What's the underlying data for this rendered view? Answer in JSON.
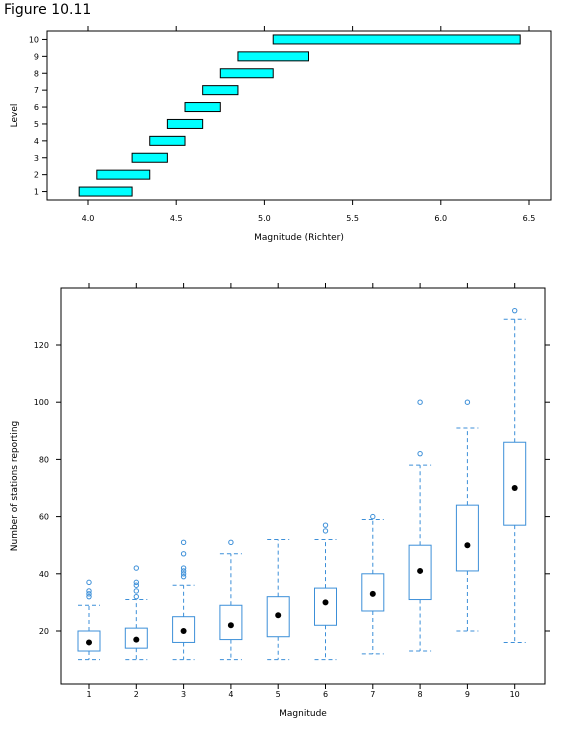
{
  "figure_title": "Figure 10.11",
  "chart_data": [
    {
      "type": "bar",
      "subtype": "shingle-intervals",
      "xlabel": "Magnitude (Richter)",
      "ylabel": "Level",
      "xlim": [
        3.8,
        6.6
      ],
      "x_ticks": [
        "4.0",
        "4.5",
        "5.0",
        "5.5",
        "6.0",
        "6.5"
      ],
      "x_tick_values": [
        4.0,
        4.5,
        5.0,
        5.5,
        6.0,
        6.5
      ],
      "levels": [
        "1",
        "2",
        "3",
        "4",
        "5",
        "6",
        "7",
        "8",
        "9",
        "10"
      ],
      "intervals": [
        [
          3.95,
          4.25
        ],
        [
          4.05,
          4.35
        ],
        [
          4.25,
          4.45
        ],
        [
          4.35,
          4.55
        ],
        [
          4.45,
          4.65
        ],
        [
          4.55,
          4.75
        ],
        [
          4.65,
          4.85
        ],
        [
          4.75,
          5.05
        ],
        [
          4.85,
          5.25
        ],
        [
          5.05,
          6.45
        ]
      ],
      "bar_color": "#00ffff"
    },
    {
      "type": "box",
      "xlabel": "Magnitude",
      "ylabel": "Number of stations reporting",
      "ylim": [
        0,
        138
      ],
      "y_ticks": [
        "20",
        "40",
        "60",
        "80",
        "100",
        "120"
      ],
      "y_tick_values": [
        20,
        40,
        60,
        80,
        100,
        120
      ],
      "categories": [
        "1",
        "2",
        "3",
        "4",
        "5",
        "6",
        "7",
        "8",
        "9",
        "10"
      ],
      "boxes": [
        {
          "whisker_low": 10,
          "q1": 13,
          "median": 16,
          "q3": 20,
          "whisker_high": 29,
          "outliers": [
            32,
            33,
            34,
            37
          ]
        },
        {
          "whisker_low": 10,
          "q1": 14,
          "median": 17,
          "q3": 21,
          "whisker_high": 31,
          "outliers": [
            32,
            34,
            36,
            37,
            42
          ]
        },
        {
          "whisker_low": 10,
          "q1": 16,
          "median": 20,
          "q3": 25,
          "whisker_high": 36,
          "outliers": [
            39,
            40,
            41,
            42,
            47,
            51
          ]
        },
        {
          "whisker_low": 10,
          "q1": 17,
          "median": 22,
          "q3": 29,
          "whisker_high": 47,
          "outliers": [
            51
          ]
        },
        {
          "whisker_low": 10,
          "q1": 18,
          "median": 25.5,
          "q3": 32,
          "whisker_high": 52,
          "outliers": []
        },
        {
          "whisker_low": 10,
          "q1": 22,
          "median": 30,
          "q3": 35,
          "whisker_high": 52,
          "outliers": [
            55,
            57
          ]
        },
        {
          "whisker_low": 12,
          "q1": 27,
          "median": 33,
          "q3": 40,
          "whisker_high": 59,
          "outliers": [
            60
          ]
        },
        {
          "whisker_low": 13,
          "q1": 31,
          "median": 41,
          "q3": 50,
          "whisker_high": 78,
          "outliers": [
            82,
            100
          ]
        },
        {
          "whisker_low": 20,
          "q1": 41,
          "median": 50,
          "q3": 64,
          "whisker_high": 91,
          "outliers": [
            100
          ]
        },
        {
          "whisker_low": 16,
          "q1": 57,
          "median": 70,
          "q3": 86,
          "whisker_high": 129,
          "outliers": [
            132
          ]
        }
      ],
      "box_color": "#3c8fd8",
      "median_color": "#000000"
    }
  ]
}
